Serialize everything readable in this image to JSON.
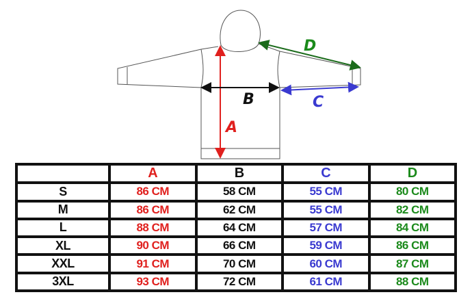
{
  "colors": {
    "A": "#e0201e",
    "B": "#111111",
    "C": "#3a3ad0",
    "D": "#1b8a1b"
  },
  "diagram": {
    "labels": {
      "A": "A",
      "B": "B",
      "C": "C",
      "D": "D"
    }
  },
  "table": {
    "headers": [
      "",
      "A",
      "B",
      "C",
      "D"
    ],
    "rows": [
      {
        "size": "S",
        "A": "86 CM",
        "B": "58 CM",
        "C": "55 CM",
        "D": "80 CM"
      },
      {
        "size": "M",
        "A": "86 CM",
        "B": "62 CM",
        "C": "55 CM",
        "D": "82 CM"
      },
      {
        "size": "L",
        "A": "88 CM",
        "B": "64 CM",
        "C": "57 CM",
        "D": "84 CM"
      },
      {
        "size": "XL",
        "A": "90 CM",
        "B": "66 CM",
        "C": "59 CM",
        "D": "86 CM"
      },
      {
        "size": "XXL",
        "A": "91 CM",
        "B": "70 CM",
        "C": "60 CM",
        "D": "87 CM"
      },
      {
        "size": "3XL",
        "A": "93 CM",
        "B": "72 CM",
        "C": "61 CM",
        "D": "88 CM"
      }
    ]
  }
}
